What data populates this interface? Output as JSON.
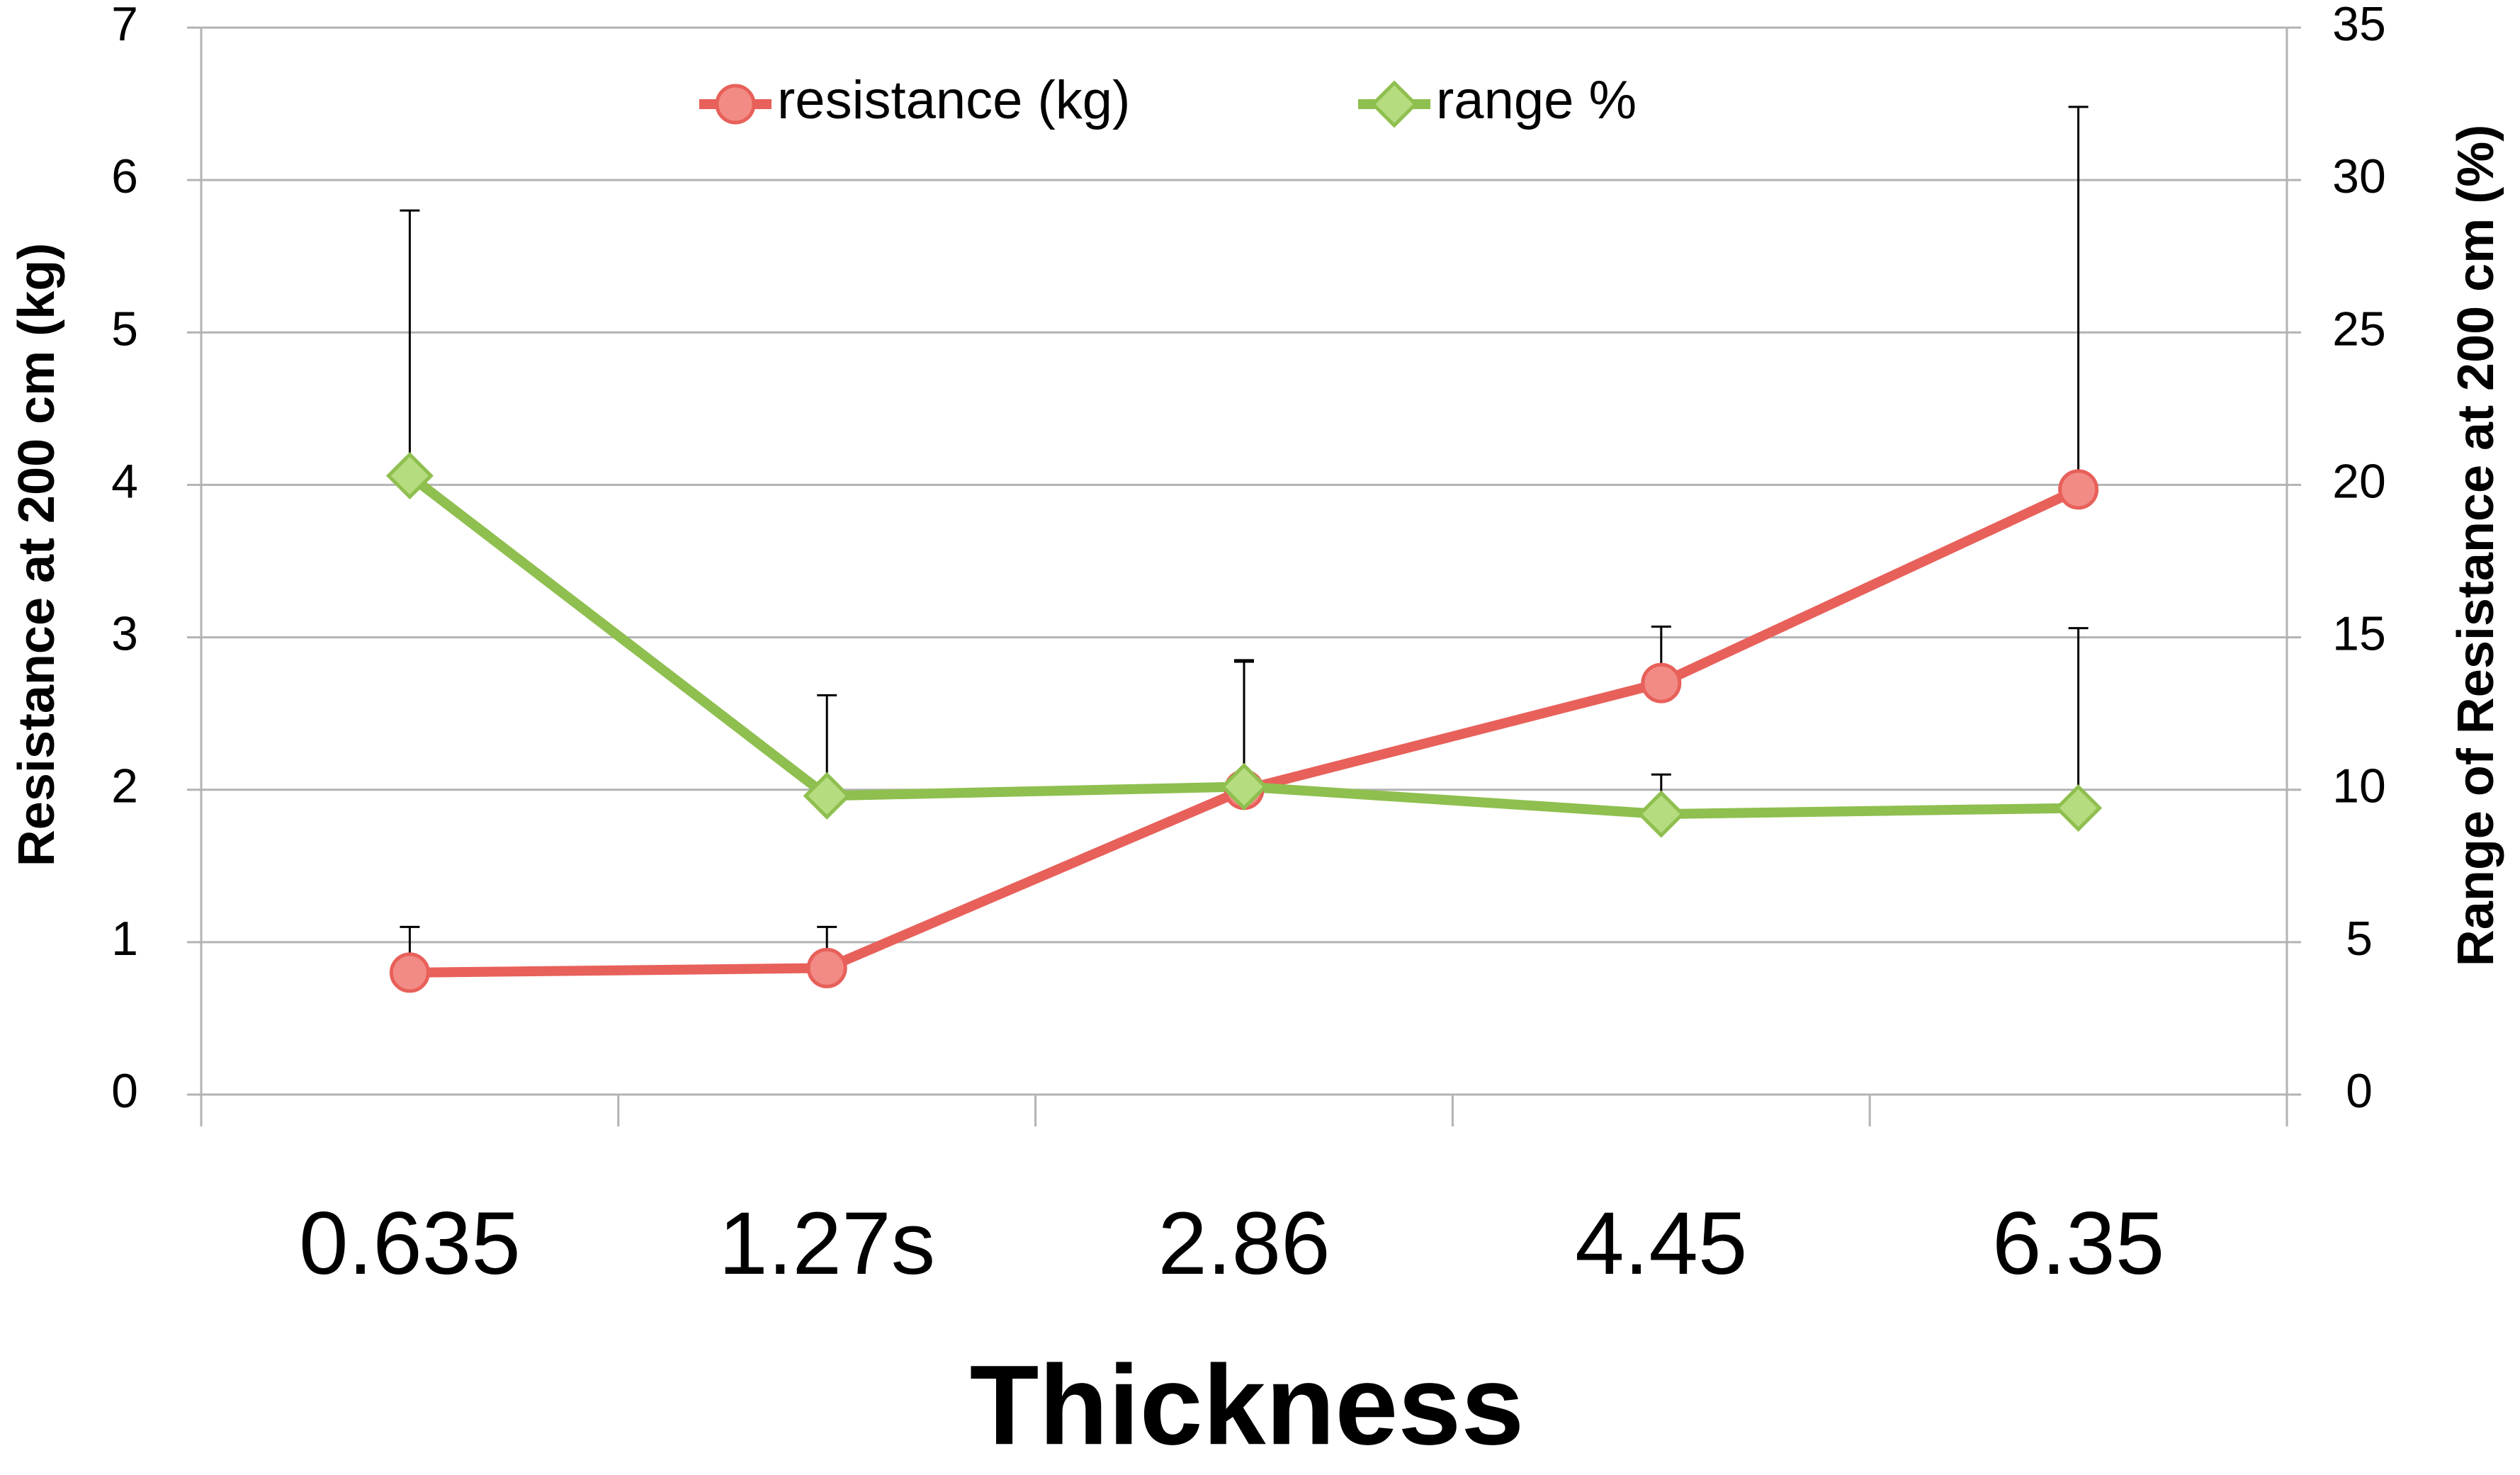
{
  "chart_data": {
    "type": "line",
    "x_label": "Thickness",
    "y_label": "Resistance at 200 cm (kg)",
    "y2_label": "Range of Resistance at 200 cm (%)",
    "categories": [
      "0.635",
      "1.27s",
      "2.86",
      "4.45",
      "6.35"
    ],
    "series": [
      {
        "name": "resistance (kg)",
        "color": "#e8605a",
        "marker": "circle",
        "values": [
          0.8,
          0.83,
          2.0,
          2.7,
          3.97
        ],
        "errors": [
          0.3,
          0.27,
          0.85,
          0.37,
          2.51
        ]
      },
      {
        "name": "range %",
        "color": "#8fbf4f",
        "marker": "diamond",
        "axis": "y2",
        "values": [
          20.3,
          9.8,
          10.1,
          9.2,
          9.4
        ],
        "errors": [
          8.7,
          3.3,
          4.1,
          1.3,
          5.9
        ]
      }
    ],
    "ylim": [
      0,
      7
    ],
    "yticks": [
      0,
      1,
      2,
      3,
      4,
      5,
      6,
      7
    ],
    "y2lim": [
      0,
      35
    ],
    "y2ticks": [
      0,
      5,
      10,
      15,
      20,
      25,
      30,
      35
    ],
    "grid": true,
    "legend": "top"
  }
}
